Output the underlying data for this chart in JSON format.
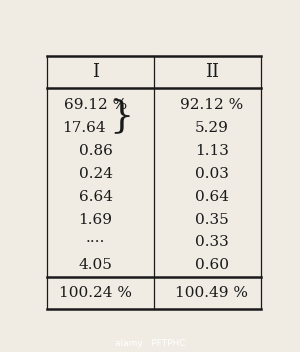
{
  "col_headers": [
    "I",
    "II"
  ],
  "rows": [
    [
      "69.12 %",
      "92.12 %"
    ],
    [
      "17.64 }",
      "5.29"
    ],
    [
      "0.86",
      "1.13"
    ],
    [
      "0.24",
      "0.03"
    ],
    [
      "6.64",
      "0.64"
    ],
    [
      "1.69",
      "0.35"
    ],
    [
      "....",
      "0.33"
    ],
    [
      "4.05",
      "0.60"
    ]
  ],
  "footer": [
    "100.24 %",
    "100.49 %"
  ],
  "bg_color": "#f0ece4",
  "text_color": "#1a1a1a",
  "header_fontsize": 13,
  "body_fontsize": 11,
  "footer_fontsize": 11
}
